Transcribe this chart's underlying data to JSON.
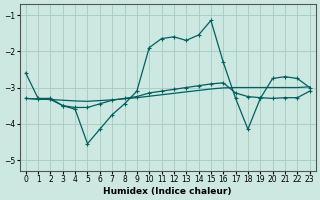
{
  "xlabel": "Humidex (Indice chaleur)",
  "ylabel": "",
  "xlim": [
    -0.5,
    23.5
  ],
  "ylim": [
    -5.3,
    -0.7
  ],
  "yticks": [
    -5,
    -4,
    -3,
    -2,
    -1
  ],
  "xticks": [
    0,
    1,
    2,
    3,
    4,
    5,
    6,
    7,
    8,
    9,
    10,
    11,
    12,
    13,
    14,
    15,
    16,
    17,
    18,
    19,
    20,
    21,
    22,
    23
  ],
  "bg_color": "#cce8e0",
  "grid_color": "#aacfc7",
  "line_color": "#006060",
  "line1_x": [
    0,
    1,
    2,
    3,
    4,
    5,
    6,
    7,
    8,
    9,
    10,
    11,
    12,
    13,
    14,
    15,
    16,
    17,
    18,
    19,
    20,
    21,
    22,
    23
  ],
  "line1_y": [
    -2.6,
    -3.3,
    -3.3,
    -3.5,
    -3.6,
    -4.55,
    -4.15,
    -3.75,
    -3.45,
    -3.1,
    -1.9,
    -1.65,
    -1.6,
    -1.7,
    -1.55,
    -1.15,
    -2.3,
    -3.3,
    -4.15,
    -3.3,
    -2.75,
    -2.7,
    -2.75,
    -3.0
  ],
  "line2_x": [
    0,
    1,
    2,
    3,
    4,
    5,
    6,
    7,
    8,
    9,
    10,
    11,
    12,
    13,
    14,
    15,
    16,
    17,
    18,
    19,
    20,
    21,
    22,
    23
  ],
  "line2_y": [
    -3.3,
    -3.32,
    -3.33,
    -3.35,
    -3.37,
    -3.38,
    -3.36,
    -3.34,
    -3.31,
    -3.28,
    -3.24,
    -3.2,
    -3.16,
    -3.12,
    -3.08,
    -3.04,
    -3.01,
    -3.0,
    -3.0,
    -3.0,
    -3.0,
    -3.0,
    -3.0,
    -2.98
  ],
  "line3_x": [
    0,
    1,
    2,
    3,
    4,
    5,
    6,
    7,
    8,
    9,
    10,
    11,
    12,
    13,
    14,
    15,
    16,
    17,
    18,
    19,
    20,
    21,
    22,
    23
  ],
  "line3_y": [
    -3.3,
    -3.32,
    -3.33,
    -3.5,
    -3.55,
    -3.55,
    -3.45,
    -3.35,
    -3.3,
    -3.25,
    -3.15,
    -3.1,
    -3.05,
    -3.0,
    -2.95,
    -2.9,
    -2.87,
    -3.15,
    -3.25,
    -3.28,
    -3.3,
    -3.28,
    -3.28,
    -3.1
  ]
}
